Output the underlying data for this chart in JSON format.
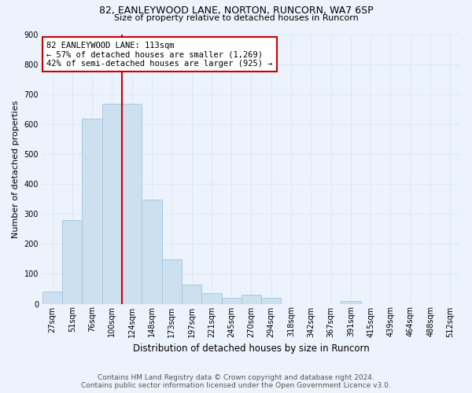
{
  "title1": "82, EANLEYWOOD LANE, NORTON, RUNCORN, WA7 6SP",
  "title2": "Size of property relative to detached houses in Runcorn",
  "xlabel": "Distribution of detached houses by size in Runcorn",
  "ylabel": "Number of detached properties",
  "footnote1": "Contains HM Land Registry data © Crown copyright and database right 2024.",
  "footnote2": "Contains public sector information licensed under the Open Government Licence v3.0.",
  "bin_labels": [
    "27sqm",
    "51sqm",
    "76sqm",
    "100sqm",
    "124sqm",
    "148sqm",
    "173sqm",
    "197sqm",
    "221sqm",
    "245sqm",
    "270sqm",
    "294sqm",
    "318sqm",
    "342sqm",
    "367sqm",
    "391sqm",
    "415sqm",
    "439sqm",
    "464sqm",
    "488sqm",
    "512sqm"
  ],
  "bar_values": [
    40,
    280,
    620,
    670,
    670,
    348,
    148,
    65,
    35,
    20,
    30,
    20,
    0,
    0,
    0,
    10,
    0,
    0,
    0,
    0,
    0
  ],
  "bar_color": "#cce0f0",
  "bar_edge_color": "#a0c4df",
  "grid_color": "#dce8f5",
  "background_color": "#edf3fc",
  "annotation_text": "82 EANLEYWOOD LANE: 113sqm\n← 57% of detached houses are smaller (1,269)\n42% of semi-detached houses are larger (925) →",
  "red_line_x": 3.5,
  "annotation_box_facecolor": "#ffffff",
  "annotation_border_color": "#cc0000",
  "ylim": [
    0,
    900
  ],
  "yticks": [
    0,
    100,
    200,
    300,
    400,
    500,
    600,
    700,
    800,
    900
  ],
  "title1_fontsize": 9,
  "title2_fontsize": 8,
  "ylabel_fontsize": 8,
  "xlabel_fontsize": 8.5,
  "tick_fontsize": 7,
  "footnote_fontsize": 6.5
}
